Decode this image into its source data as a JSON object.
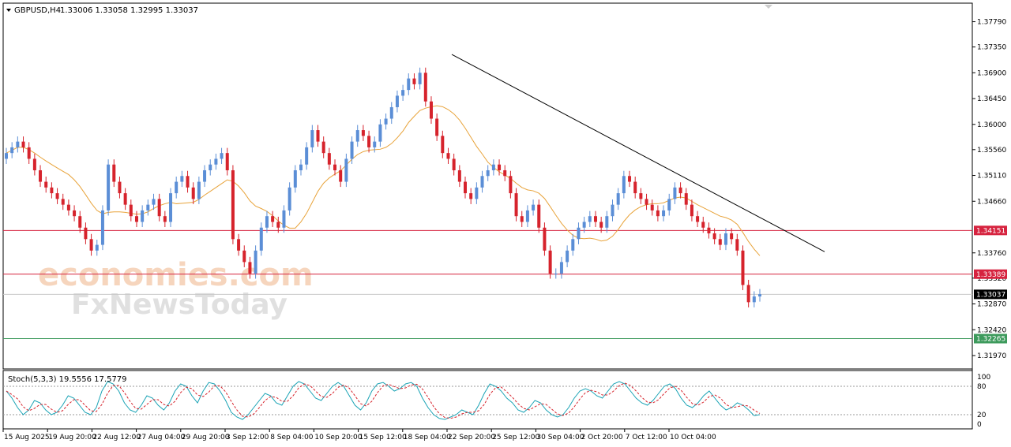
{
  "header": {
    "symbol": "GBPUSD,H4",
    "quotes": "1.33006 1.33058 1.32995 1.33037"
  },
  "watermark": {
    "line1": "economies.com",
    "line2": "FxNewsToday"
  },
  "colors": {
    "bull": "#5b8ed6",
    "bear": "#d6232c",
    "ma": "#e8a33a",
    "trend": "#000000",
    "resistance": "#d6233f",
    "support": "#3d9a5c",
    "current": "#000000",
    "stoch_main": "#1aa3b5",
    "stoch_signal": "#d6232c"
  },
  "chart_data": {
    "type": "candlestick",
    "price_axis": {
      "ticks": [
        "1.37790",
        "1.37350",
        "1.36900",
        "1.36450",
        "1.36000",
        "1.35560",
        "1.35110",
        "1.34660",
        "1.34151",
        "1.33760",
        "1.33389",
        "1.33320",
        "1.33037",
        "1.32870",
        "1.32420",
        "1.32265",
        "1.31970"
      ],
      "range": [
        1.3175,
        1.381
      ]
    },
    "time_axis": {
      "labels": [
        "15 Aug 2025",
        "19 Aug 20:00",
        "22 Aug 12:00",
        "27 Aug 04:00",
        "29 Aug 20:00",
        "3 Sep 12:00",
        "8 Sep 04:00",
        "10 Sep 20:00",
        "15 Sep 12:00",
        "18 Sep 04:00",
        "22 Sep 20:00",
        "25 Sep 12:00",
        "30 Sep 04:00",
        "2 Oct 20:00",
        "7 Oct 12:00",
        "10 Oct 04:00"
      ]
    },
    "levels": [
      {
        "name": "resistance-1",
        "value": 1.34151,
        "label": "1.34151",
        "kind": "resistance"
      },
      {
        "name": "resistance-2",
        "value": 1.33389,
        "label": "1.33389",
        "kind": "resistance"
      },
      {
        "name": "current-price",
        "value": 1.33037,
        "label": "1.33037",
        "kind": "current"
      },
      {
        "name": "support-1",
        "value": 1.32265,
        "label": "1.32265",
        "kind": "support"
      }
    ],
    "trendline": {
      "from": {
        "t": 1.0,
        "p": 1.3722
      },
      "to": {
        "t": 2.0,
        "p": 1.3378
      }
    },
    "closes": [
      1.355,
      1.356,
      1.357,
      1.356,
      1.354,
      1.352,
      1.35,
      1.349,
      1.348,
      1.347,
      1.346,
      1.345,
      1.344,
      1.342,
      1.34,
      1.338,
      1.339,
      1.345,
      1.353,
      1.35,
      1.348,
      1.346,
      1.344,
      1.343,
      1.345,
      1.346,
      1.347,
      1.344,
      1.343,
      1.348,
      1.35,
      1.351,
      1.349,
      1.347,
      1.35,
      1.352,
      1.353,
      1.354,
      1.355,
      1.352,
      1.34,
      1.338,
      1.336,
      1.334,
      1.338,
      1.342,
      1.344,
      1.343,
      1.342,
      1.345,
      1.349,
      1.352,
      1.353,
      1.356,
      1.359,
      1.357,
      1.355,
      1.353,
      1.352,
      1.35,
      1.354,
      1.357,
      1.359,
      1.358,
      1.356,
      1.357,
      1.36,
      1.361,
      1.363,
      1.365,
      1.366,
      1.368,
      1.367,
      1.369,
      1.364,
      1.361,
      1.358,
      1.355,
      1.354,
      1.352,
      1.35,
      1.348,
      1.347,
      1.349,
      1.351,
      1.352,
      1.353,
      1.352,
      1.351,
      1.348,
      1.344,
      1.343,
      1.345,
      1.346,
      1.342,
      1.338,
      1.334,
      1.334,
      1.336,
      1.338,
      1.34,
      1.342,
      1.343,
      1.344,
      1.343,
      1.342,
      1.344,
      1.346,
      1.348,
      1.351,
      1.35,
      1.348,
      1.347,
      1.346,
      1.345,
      1.344,
      1.345,
      1.347,
      1.349,
      1.348,
      1.346,
      1.344,
      1.343,
      1.342,
      1.341,
      1.34,
      1.339,
      1.341,
      1.34,
      1.338,
      1.332,
      1.329,
      1.33,
      1.3304
    ],
    "stochastic": {
      "label": "Stoch(5,3,3) 19.5556 17.5779",
      "levels": [
        "100",
        "80",
        "20",
        "0"
      ],
      "main": [
        70,
        55,
        35,
        20,
        30,
        50,
        45,
        30,
        20,
        25,
        40,
        60,
        55,
        40,
        25,
        20,
        35,
        70,
        90,
        85,
        70,
        45,
        30,
        25,
        40,
        60,
        55,
        40,
        30,
        45,
        70,
        85,
        80,
        60,
        45,
        70,
        88,
        85,
        70,
        50,
        25,
        15,
        10,
        20,
        35,
        50,
        65,
        60,
        45,
        40,
        60,
        80,
        90,
        85,
        70,
        55,
        50,
        65,
        80,
        88,
        80,
        60,
        40,
        30,
        45,
        70,
        85,
        88,
        80,
        70,
        75,
        85,
        88,
        80,
        55,
        35,
        20,
        12,
        10,
        15,
        20,
        30,
        25,
        20,
        40,
        65,
        85,
        80,
        70,
        55,
        45,
        30,
        25,
        35,
        50,
        45,
        30,
        20,
        15,
        20,
        35,
        55,
        70,
        75,
        70,
        60,
        55,
        70,
        85,
        90,
        85,
        70,
        55,
        45,
        40,
        50,
        65,
        80,
        85,
        75,
        55,
        40,
        35,
        45,
        60,
        70,
        55,
        40,
        30,
        35,
        45,
        40,
        30,
        18,
        20
      ]
    }
  }
}
